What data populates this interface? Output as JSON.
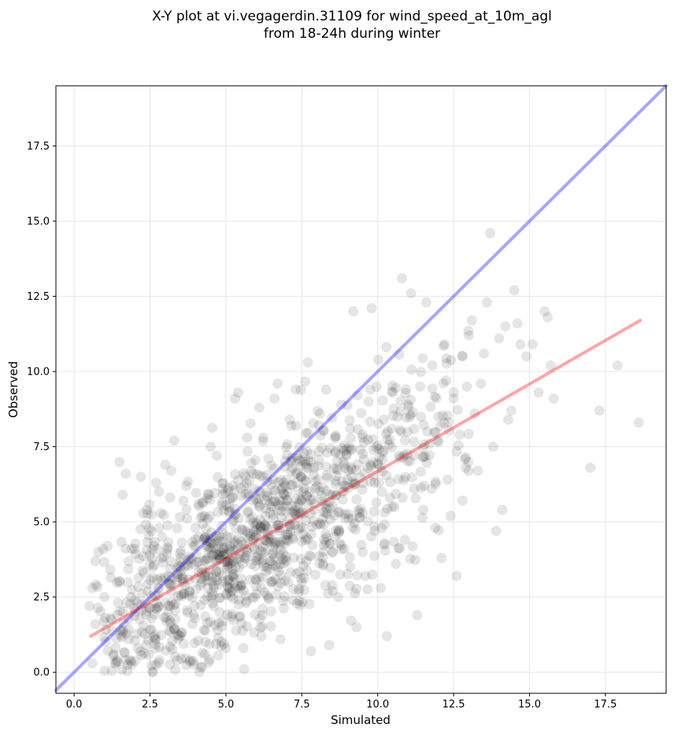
{
  "chart_data": {
    "type": "scatter",
    "title_line1": "X-Y plot at vi.vegagerdin.31109 for wind_speed_at_10m_agl",
    "title_line2": "from 18-24h during winter",
    "xlabel": "Simulated",
    "ylabel": "Observed",
    "xlim": [
      -0.6,
      19.5
    ],
    "ylim": [
      -0.7,
      19.5
    ],
    "x_ticks": [
      "0.0",
      "2.5",
      "5.0",
      "7.5",
      "10.0",
      "12.5",
      "15.0",
      "17.5"
    ],
    "x_tick_values": [
      0,
      2.5,
      5,
      7.5,
      10,
      12.5,
      15,
      17.5
    ],
    "y_ticks": [
      "0.0",
      "2.5",
      "5.0",
      "7.5",
      "10.0",
      "12.5",
      "15.0",
      "17.5"
    ],
    "y_tick_values": [
      0,
      2.5,
      5,
      7.5,
      10,
      12.5,
      15,
      17.5
    ],
    "grid": true,
    "marker_color": "#000000",
    "marker_alpha": 0.1,
    "identity_line": {
      "color": "#0000ff",
      "alpha": 0.35,
      "x": [
        -0.6,
        19.5
      ],
      "y": [
        -0.6,
        19.5
      ]
    },
    "fit_line": {
      "color": "#ff0000",
      "alpha": 0.35,
      "x": [
        0.55,
        18.65
      ],
      "y": [
        1.2,
        11.7
      ]
    },
    "points": [
      [
        0.5,
        2.2
      ],
      [
        0.6,
        2.8
      ],
      [
        0.7,
        1.6
      ],
      [
        0.6,
        0.3
      ],
      [
        0.8,
        4.0
      ],
      [
        0.7,
        3.7
      ],
      [
        1.0,
        2.5
      ],
      [
        1.1,
        4.2
      ],
      [
        1.2,
        1.8
      ],
      [
        1.3,
        0.6
      ],
      [
        1.0,
        0.05
      ],
      [
        1.5,
        3.0
      ],
      [
        1.6,
        5.9
      ],
      [
        1.7,
        6.6
      ],
      [
        1.8,
        1.1
      ],
      [
        1.9,
        4.1
      ],
      [
        2.0,
        2.4
      ],
      [
        2.1,
        0.8
      ],
      [
        2.2,
        6.5
      ],
      [
        2.3,
        3.3
      ],
      [
        2.4,
        5.4
      ],
      [
        2.5,
        1.4
      ],
      [
        2.6,
        0.0
      ],
      [
        2.7,
        6.3
      ],
      [
        2.8,
        6.0
      ],
      [
        2.9,
        4.5
      ],
      [
        3.0,
        6.9
      ],
      [
        3.1,
        2.0
      ],
      [
        3.2,
        6.7
      ],
      [
        3.3,
        7.7
      ],
      [
        3.4,
        0.4
      ],
      [
        3.5,
        3.8
      ],
      [
        3.6,
        5.7
      ],
      [
        3.7,
        6.2
      ],
      [
        3.8,
        2.7
      ],
      [
        3.9,
        1.6
      ],
      [
        4.0,
        4.8
      ],
      [
        4.1,
        5.6
      ],
      [
        4.2,
        3.1
      ],
      [
        4.3,
        0.6
      ],
      [
        4.4,
        5.1
      ],
      [
        4.5,
        7.5
      ],
      [
        4.6,
        2.2
      ],
      [
        4.7,
        7.2
      ],
      [
        4.8,
        4.0
      ],
      [
        4.9,
        6.1
      ],
      [
        5.0,
        0.8
      ],
      [
        5.1,
        3.5
      ],
      [
        5.2,
        5.8
      ],
      [
        5.3,
        9.1
      ],
      [
        5.4,
        9.3
      ],
      [
        5.5,
        2.9
      ],
      [
        5.6,
        0.1
      ],
      [
        5.7,
        7.8
      ],
      [
        5.8,
        4.6
      ],
      [
        5.9,
        6.6
      ],
      [
        6.0,
        2.6
      ],
      [
        6.1,
        8.8
      ],
      [
        6.2,
        1.9
      ],
      [
        6.3,
        5.2
      ],
      [
        6.4,
        7.1
      ],
      [
        6.5,
        3.7
      ],
      [
        6.6,
        9.1
      ],
      [
        6.7,
        9.6
      ],
      [
        6.8,
        1.1
      ],
      [
        6.9,
        6.3
      ],
      [
        7.0,
        4.4
      ],
      [
        7.1,
        8.4
      ],
      [
        7.2,
        2.4
      ],
      [
        7.3,
        9.4
      ],
      [
        7.4,
        5.6
      ],
      [
        7.5,
        3.0
      ],
      [
        7.6,
        7.0
      ],
      [
        7.7,
        10.3
      ],
      [
        7.8,
        0.7
      ],
      [
        7.9,
        6.8
      ],
      [
        8.0,
        4.9
      ],
      [
        8.1,
        8.6
      ],
      [
        8.2,
        3.6
      ],
      [
        8.3,
        9.4
      ],
      [
        8.4,
        0.9
      ],
      [
        8.5,
        5.9
      ],
      [
        8.6,
        7.3
      ],
      [
        8.7,
        2.5
      ],
      [
        8.8,
        8.9
      ],
      [
        8.9,
        4.1
      ],
      [
        9.0,
        6.4
      ],
      [
        9.1,
        8.1
      ],
      [
        9.2,
        12.0
      ],
      [
        9.3,
        1.5
      ],
      [
        9.4,
        5.3
      ],
      [
        9.5,
        7.8
      ],
      [
        9.6,
        3.2
      ],
      [
        9.7,
        9.0
      ],
      [
        9.8,
        12.1
      ],
      [
        9.9,
        4.7
      ],
      [
        10.0,
        6.9
      ],
      [
        10.1,
        2.8
      ],
      [
        10.2,
        8.4
      ],
      [
        10.3,
        1.2
      ],
      [
        10.4,
        5.8
      ],
      [
        10.5,
        9.3
      ],
      [
        10.6,
        3.6
      ],
      [
        10.7,
        7.2
      ],
      [
        10.8,
        13.1
      ],
      [
        10.9,
        4.4
      ],
      [
        11.0,
        8.9
      ],
      [
        11.1,
        12.6
      ],
      [
        11.2,
        6.1
      ],
      [
        11.3,
        1.9
      ],
      [
        11.4,
        9.5
      ],
      [
        11.5,
        5.4
      ],
      [
        11.6,
        12.3
      ],
      [
        11.7,
        7.6
      ],
      [
        11.8,
        10.2
      ],
      [
        11.9,
        4.8
      ],
      [
        12.0,
        8.5
      ],
      [
        12.1,
        3.8
      ],
      [
        12.2,
        10.9
      ],
      [
        12.3,
        6.4
      ],
      [
        12.4,
        5.2
      ],
      [
        12.5,
        9.1
      ],
      [
        12.6,
        3.2
      ],
      [
        12.7,
        7.9
      ],
      [
        12.8,
        10.5
      ],
      [
        12.9,
        6.8
      ],
      [
        13.0,
        11.2
      ],
      [
        13.1,
        11.7
      ],
      [
        13.2,
        8.6
      ],
      [
        13.3,
        6.7
      ],
      [
        13.4,
        9.6
      ],
      [
        13.5,
        10.6
      ],
      [
        13.6,
        12.3
      ],
      [
        13.7,
        14.6
      ],
      [
        13.8,
        7.5
      ],
      [
        13.9,
        4.7
      ],
      [
        14.0,
        11.1
      ],
      [
        14.1,
        5.4
      ],
      [
        14.2,
        11.5
      ],
      [
        14.3,
        8.4
      ],
      [
        14.4,
        8.7
      ],
      [
        14.5,
        12.7
      ],
      [
        14.6,
        11.6
      ],
      [
        14.7,
        10.9
      ],
      [
        14.9,
        10.5
      ],
      [
        15.1,
        10.9
      ],
      [
        15.3,
        9.3
      ],
      [
        15.5,
        12.0
      ],
      [
        15.6,
        11.8
      ],
      [
        15.7,
        10.2
      ],
      [
        15.8,
        9.1
      ],
      [
        17.0,
        6.8
      ],
      [
        17.3,
        8.7
      ],
      [
        17.9,
        10.2
      ],
      [
        18.6,
        8.3
      ]
    ]
  }
}
